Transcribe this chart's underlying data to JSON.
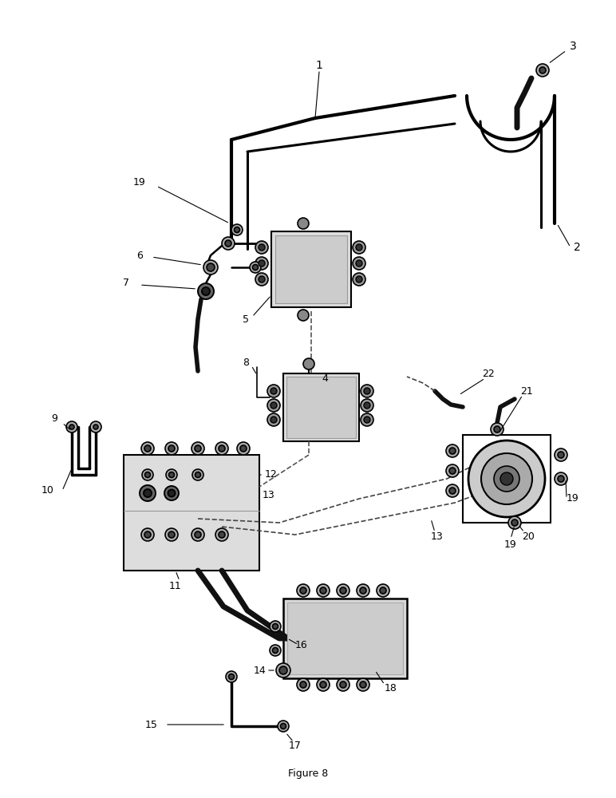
{
  "figure_label": "Figure 8",
  "bg": "#ffffff",
  "lc": "#000000",
  "gray1": "#cccccc",
  "gray2": "#888888",
  "dark": "#222222"
}
